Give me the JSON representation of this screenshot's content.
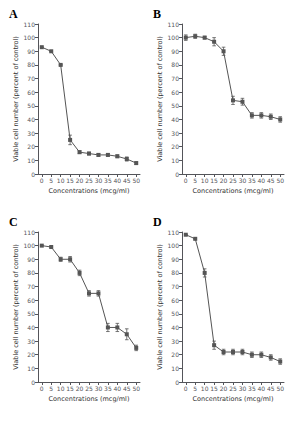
{
  "chart_data": [
    {
      "type": "line",
      "title": "A",
      "xlabel": "Concentrations (mcg/ml)",
      "ylabel": "Viable cell number (percent of control)",
      "x": [
        0,
        5,
        10,
        15,
        20,
        25,
        30,
        35,
        40,
        45,
        50
      ],
      "series": [
        {
          "values": [
            93,
            90,
            80,
            25,
            16,
            15,
            14,
            14,
            13,
            11,
            8
          ],
          "errors": [
            0,
            0,
            0,
            3.5,
            1.0,
            1.0,
            1.0,
            1.0,
            1.0,
            1.5,
            1.0
          ],
          "color": "#555555",
          "marker": "square"
        }
      ],
      "xlim": [
        -2,
        52
      ],
      "ylim": [
        0,
        110
      ],
      "xticks": [
        0,
        5,
        10,
        15,
        20,
        25,
        30,
        35,
        40,
        45,
        50
      ],
      "yticks": [
        0,
        10,
        20,
        30,
        40,
        50,
        60,
        70,
        80,
        90,
        100,
        110
      ],
      "grid": false
    },
    {
      "type": "line",
      "title": "B",
      "xlabel": "Concentrations (mcg/ml)",
      "ylabel": "Viable cell number (percent of control)",
      "x": [
        0,
        5,
        10,
        15,
        20,
        25,
        30,
        35,
        40,
        45,
        50
      ],
      "series": [
        {
          "values": [
            100,
            101,
            100,
            97,
            90,
            54,
            53,
            43,
            43,
            42,
            40
          ],
          "errors": [
            2.0,
            1.5,
            1.0,
            3.0,
            3.0,
            3.0,
            2.5,
            2.0,
            2.0,
            2.0,
            2.0
          ],
          "color": "#555555",
          "marker": "square"
        }
      ],
      "xlim": [
        -2,
        52
      ],
      "ylim": [
        0,
        110
      ],
      "xticks": [
        0,
        5,
        10,
        15,
        20,
        25,
        30,
        35,
        40,
        45,
        50
      ],
      "yticks": [
        0,
        10,
        20,
        30,
        40,
        50,
        60,
        70,
        80,
        90,
        100,
        110
      ],
      "grid": false
    },
    {
      "type": "line",
      "title": "C",
      "xlabel": "Concentrations (mcg/ml)",
      "ylabel": "Viable cell number (percent of control)",
      "x": [
        0,
        5,
        10,
        15,
        20,
        25,
        30,
        35,
        40,
        45,
        50
      ],
      "series": [
        {
          "values": [
            100,
            99,
            90,
            90,
            80,
            65,
            65,
            40,
            40,
            35,
            25
          ],
          "errors": [
            0,
            0,
            1.5,
            2.0,
            2.0,
            2.0,
            2.0,
            3.0,
            3.0,
            4.0,
            2.0
          ],
          "color": "#555555",
          "marker": "square"
        }
      ],
      "xlim": [
        -2,
        52
      ],
      "ylim": [
        0,
        110
      ],
      "xticks": [
        0,
        5,
        10,
        15,
        20,
        25,
        30,
        35,
        40,
        45,
        50
      ],
      "yticks": [
        0,
        10,
        20,
        30,
        40,
        50,
        60,
        70,
        80,
        90,
        100,
        110
      ],
      "grid": false
    },
    {
      "type": "line",
      "title": "D",
      "xlabel": "Concentrations (mcg/ml)",
      "ylabel": "Viable cell number (percent of control)",
      "x": [
        0,
        5,
        10,
        15,
        20,
        25,
        30,
        35,
        40,
        45,
        50
      ],
      "series": [
        {
          "values": [
            108,
            105,
            80,
            27,
            22,
            22,
            22,
            20,
            20,
            18,
            15
          ],
          "errors": [
            0,
            0,
            3.0,
            3.0,
            2.0,
            2.0,
            2.0,
            2.0,
            2.0,
            2.0,
            2.0
          ],
          "color": "#555555",
          "marker": "square"
        }
      ],
      "xlim": [
        -2,
        52
      ],
      "ylim": [
        0,
        110
      ],
      "xticks": [
        0,
        5,
        10,
        15,
        20,
        25,
        30,
        35,
        40,
        45,
        50
      ],
      "yticks": [
        0,
        10,
        20,
        30,
        40,
        50,
        60,
        70,
        80,
        90,
        100,
        110
      ],
      "grid": false
    }
  ]
}
